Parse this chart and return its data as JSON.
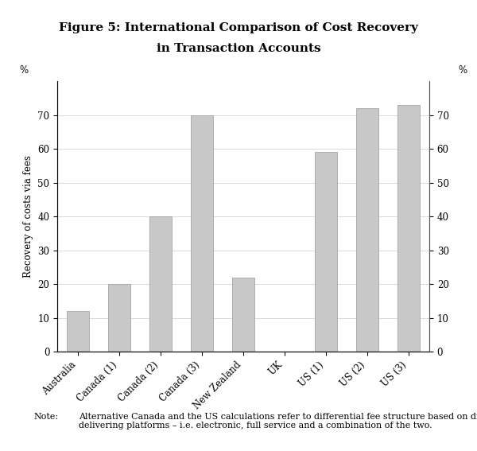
{
  "title_line1": "Figure 5: International Comparison of Cost Recovery",
  "title_line2": "in Transaction Accounts",
  "categories": [
    "Australia",
    "Canada (1)",
    "Canada (2)",
    "Canada (3)",
    "New Zealand",
    "UK",
    "US (1)",
    "US (2)",
    "US (3)"
  ],
  "values": [
    12,
    20,
    40,
    70,
    22,
    0,
    59,
    72,
    73
  ],
  "bar_color": "#c8c8c8",
  "bar_edge_color": "#999999",
  "ylabel": "Recovery of costs via fees",
  "ylabel_percent": "%",
  "ylim": [
    0,
    80
  ],
  "yticks": [
    0,
    10,
    20,
    30,
    40,
    50,
    60,
    70
  ],
  "background_color": "#ffffff",
  "plot_bg_color": "#ffffff",
  "title_fontsize": 11,
  "axis_fontsize": 8.5,
  "tick_fontsize": 8.5,
  "note_label": "Note:",
  "note_body": "Alternative Canada and the US calculations refer to differential fee structure based on different\ndelivering platforms – i.e. electronic, full service and a combination of the two.",
  "note_fontsize": 8
}
